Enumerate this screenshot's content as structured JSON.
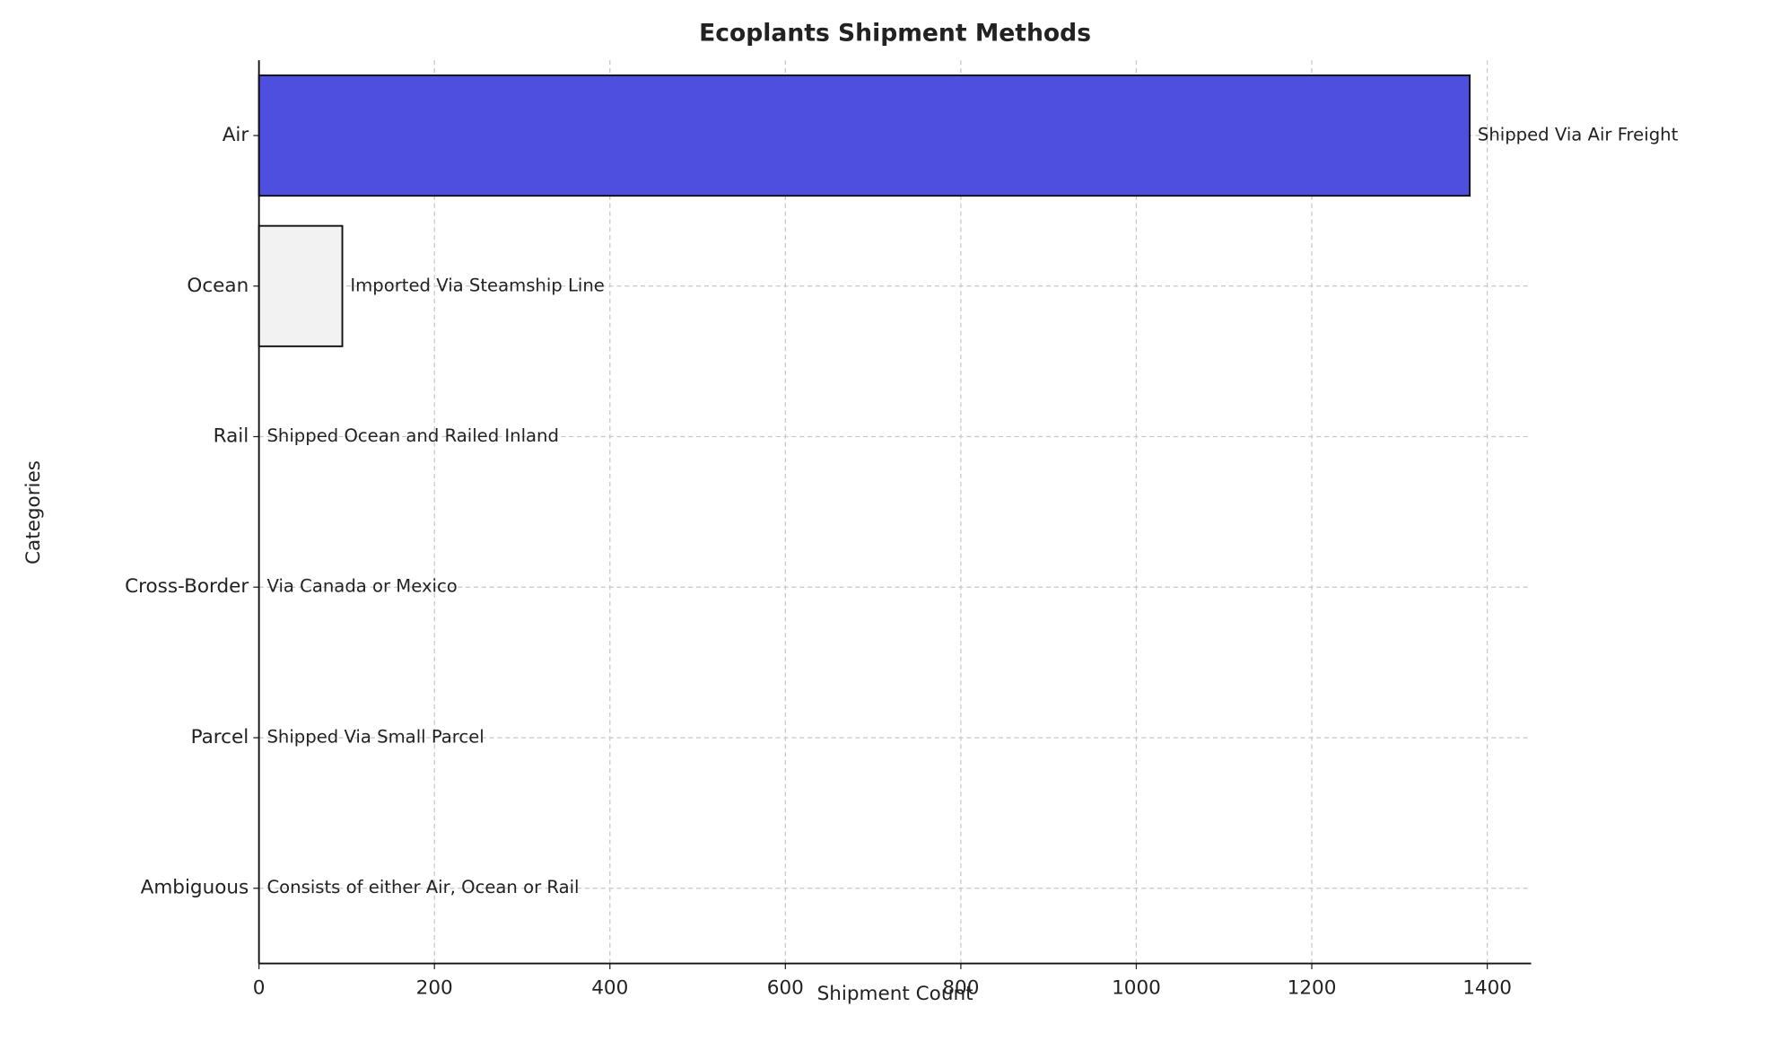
{
  "chart_data": {
    "type": "barh",
    "title": "Ecoplants Shipment Methods",
    "x_label": "Shipment Count",
    "y_label": "Categories",
    "categories": [
      "Air",
      "Ocean",
      "Rail",
      "Cross-Border",
      "Parcel",
      "Ambiguous"
    ],
    "values": [
      1380,
      95,
      0,
      0,
      0,
      0
    ],
    "colors": [
      "#4f4fdf",
      "#f2f2f2",
      "#f2f2f2",
      "#f2f2f2",
      "#f2f2f2",
      "#f2f2f2"
    ],
    "annotations": [
      "Shipped Via Air Freight",
      "Imported Via Steamship Line",
      "Shipped Ocean and Railed Inland",
      "Via Canada or Mexico",
      "Shipped Via Small Parcel",
      "Consists of either Air, Ocean or Rail"
    ],
    "xlim": [
      0,
      1450
    ],
    "xticks": [
      0,
      200,
      400,
      600,
      800,
      1000,
      1200,
      1400
    ],
    "grid": true
  }
}
